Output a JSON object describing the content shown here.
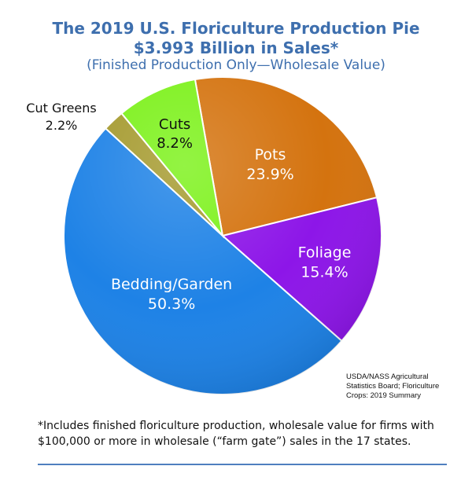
{
  "title": {
    "line1": "The 2019 U.S. Floriculture Production Pie",
    "line2": "$3.993 Billion in Sales*",
    "line3": "(Finished Production Only—Wholesale Value)"
  },
  "chart_data": {
    "type": "pie",
    "title": "The 2019 U.S. Floriculture Production Pie",
    "subtitle": "$3.993 Billion in Sales* (Finished Production Only—Wholesale Value)",
    "slices": [
      {
        "name": "Pots",
        "value": 23.9,
        "label": "23.9%",
        "color": "#d4730f"
      },
      {
        "name": "Foliage",
        "value": 15.4,
        "label": "15.4%",
        "color": "#8d16e8"
      },
      {
        "name": "Bedding/Garden",
        "value": 50.3,
        "label": "50.3%",
        "color": "#1e82e6"
      },
      {
        "name": "Cut Greens",
        "value": 2.2,
        "label": "2.2%",
        "color": "#a59a2e"
      },
      {
        "name": "Cuts",
        "value": 8.2,
        "label": "8.2%",
        "color": "#7cf11a"
      }
    ]
  },
  "source": [
    "USDA/NASS Agricultural",
    "Statistics Board; Floriculture",
    "Crops: 2019 Summary"
  ],
  "footnote": "*Includes finished floriculture production, wholesale value for firms with $100,000 or more in wholesale (“farm gate”) sales in the 17 states."
}
